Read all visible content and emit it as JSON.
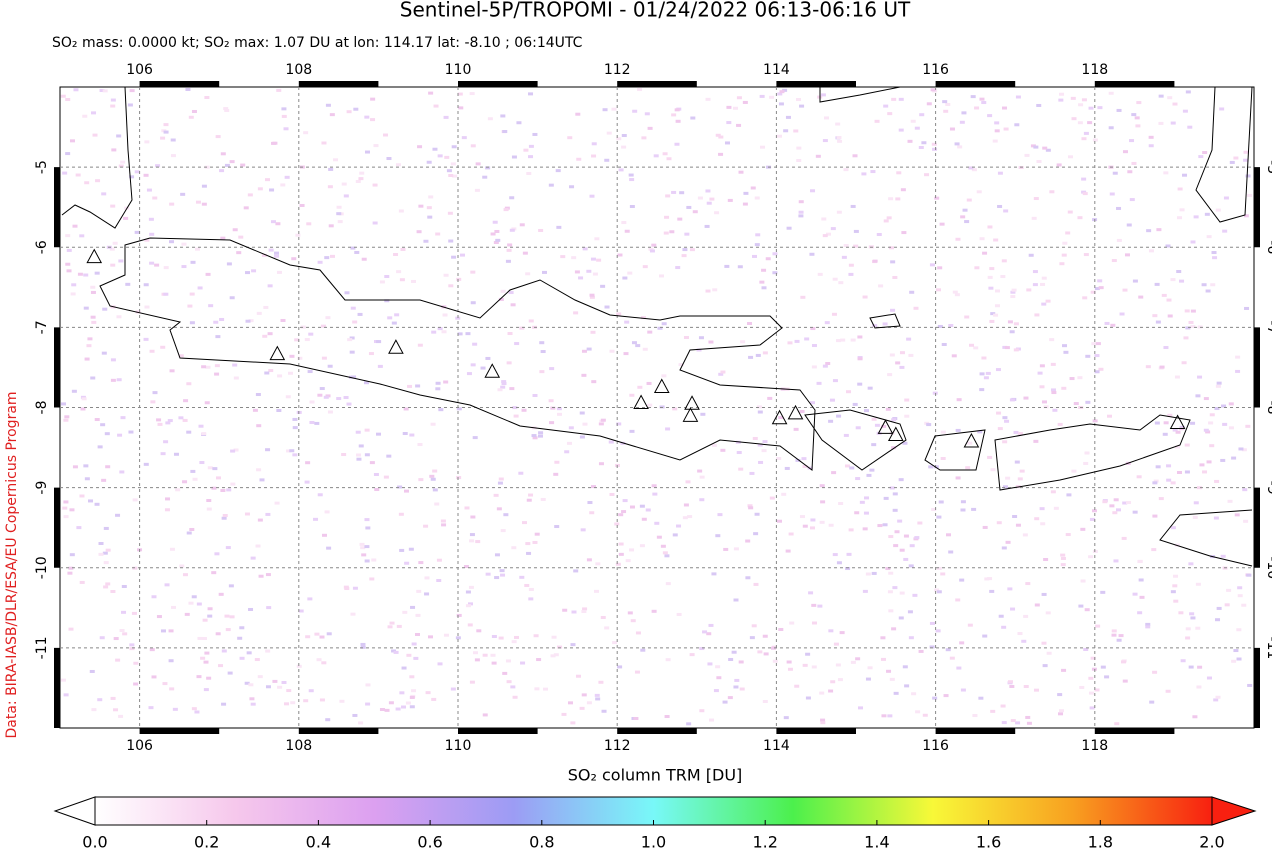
{
  "chart_data": {
    "type": "map",
    "title": "Sentinel-5P/TROPOMI - 01/24/2022 06:13-06:16 UT",
    "subtitle": "SO₂ mass: 0.0000 kt; SO₂ max: 1.07 DU at lon: 114.17 lat: -8.10 ; 06:14UTC",
    "credit": "Data: BIRA-IASB/DLR/ESA/EU Copernicus Program",
    "xlim": [
      105,
      120
    ],
    "xticks": [
      106,
      108,
      110,
      112,
      114,
      116,
      118
    ],
    "ylim": [
      -12,
      -4
    ],
    "yticks": [
      -11,
      -10,
      -9,
      -8,
      -7,
      -6,
      -5
    ],
    "grid": true,
    "volcanoes": {
      "x": [
        105.43,
        107.73,
        109.22,
        110.43,
        112.3,
        112.56,
        112.94,
        112.92,
        114.04,
        114.24,
        115.37,
        115.5,
        116.45,
        119.04
      ],
      "y": [
        -6.13,
        -7.34,
        -7.26,
        -7.56,
        -7.95,
        -7.75,
        -7.96,
        -8.11,
        -8.14,
        -8.08,
        -8.26,
        -8.35,
        -8.43,
        -8.2
      ]
    },
    "colorbar": {
      "label": "SO₂ column TRM [DU]",
      "lim": [
        0,
        2
      ],
      "colors": [
        "#ffffff",
        "#f6c8ec",
        "#dca0f0",
        "#9c9cf4",
        "#78f8f8",
        "#4cf04c",
        "#f8f838",
        "#f8a020",
        "#f82010"
      ],
      "ticks": [
        {
          "value": 0,
          "label": "0.0"
        },
        {
          "value": 0.2,
          "label": "0.2"
        },
        {
          "value": 0.4,
          "label": "0.4"
        },
        {
          "value": 0.6,
          "label": "0.6"
        },
        {
          "value": 0.8,
          "label": "0.8"
        },
        {
          "value": 1,
          "label": "1.0"
        },
        {
          "value": 1.2,
          "label": "1.2"
        },
        {
          "value": 1.4,
          "label": "1.4"
        },
        {
          "value": 1.6,
          "label": "1.6"
        },
        {
          "value": 1.8,
          "label": "1.8"
        },
        {
          "value": 2,
          "label": "2.0"
        }
      ]
    }
  }
}
